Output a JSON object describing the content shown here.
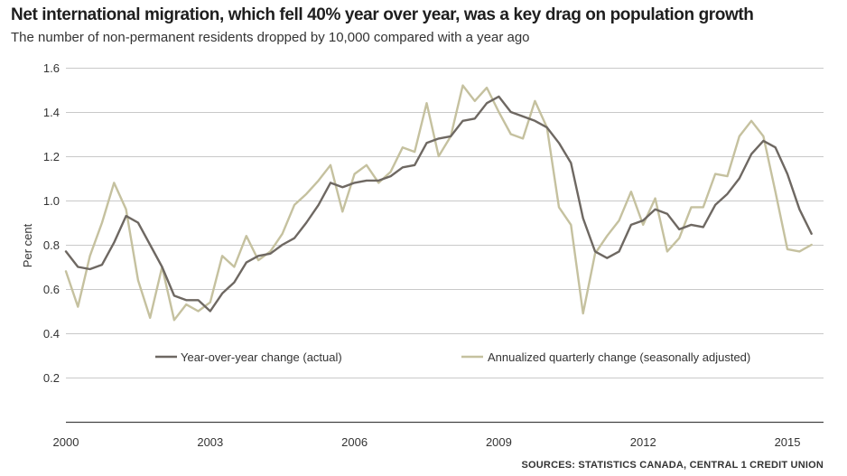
{
  "chart_data": {
    "type": "line",
    "title": "Net international migration, which fell 40% year over year, was a key drag on population growth",
    "subtitle": "The number of non-permanent residents dropped by 10,000 compared with a year ago",
    "ylabel": "Per cent",
    "xlabel": "",
    "ylim": [
      0,
      1.6
    ],
    "xlim": [
      2000,
      2015.75
    ],
    "yticks": [
      0.2,
      0.4,
      0.6,
      0.8,
      1.0,
      1.2,
      1.4,
      1.6
    ],
    "ytick_labels": [
      "0.2",
      "0.4",
      "0.6",
      "0.8",
      "1.0",
      "1.2",
      "1.4",
      "1.6"
    ],
    "xticks": [
      2000,
      2003,
      2006,
      2009,
      2012,
      2015
    ],
    "xtick_labels": [
      "2000",
      "2003",
      "2006",
      "2009",
      "2012",
      "2015"
    ],
    "grid": true,
    "legend_position": "middle",
    "x": [
      2000.0,
      2000.25,
      2000.5,
      2000.75,
      2001.0,
      2001.25,
      2001.5,
      2001.75,
      2002.0,
      2002.25,
      2002.5,
      2002.75,
      2003.0,
      2003.25,
      2003.5,
      2003.75,
      2004.0,
      2004.25,
      2004.5,
      2004.75,
      2005.0,
      2005.25,
      2005.5,
      2005.75,
      2006.0,
      2006.25,
      2006.5,
      2006.75,
      2007.0,
      2007.25,
      2007.5,
      2007.75,
      2008.0,
      2008.25,
      2008.5,
      2008.75,
      2009.0,
      2009.25,
      2009.5,
      2009.75,
      2010.0,
      2010.25,
      2010.5,
      2010.75,
      2011.0,
      2011.25,
      2011.5,
      2011.75,
      2012.0,
      2012.25,
      2012.5,
      2012.75,
      2013.0,
      2013.25,
      2013.5,
      2013.75,
      2014.0,
      2014.25,
      2014.5,
      2014.75,
      2015.0,
      2015.25,
      2015.5
    ],
    "series": [
      {
        "name": "Year-over-year change (actual)",
        "color": "#6e6862",
        "values": [
          0.77,
          0.7,
          0.69,
          0.71,
          0.81,
          0.93,
          0.9,
          0.8,
          0.7,
          0.57,
          0.55,
          0.55,
          0.5,
          0.58,
          0.63,
          0.72,
          0.75,
          0.76,
          0.8,
          0.83,
          0.9,
          0.98,
          1.08,
          1.06,
          1.08,
          1.09,
          1.09,
          1.11,
          1.15,
          1.16,
          1.26,
          1.28,
          1.29,
          1.36,
          1.37,
          1.44,
          1.47,
          1.4,
          1.38,
          1.36,
          1.33,
          1.26,
          1.17,
          0.92,
          0.77,
          0.74,
          0.77,
          0.89,
          0.91,
          0.96,
          0.94,
          0.87,
          0.89,
          0.88,
          0.98,
          1.03,
          1.1,
          1.21,
          1.27,
          1.24,
          1.12,
          0.96,
          0.85
        ]
      },
      {
        "name": "Annualized quarterly change (seasonally adjusted)",
        "color": "#c5c19f",
        "values": [
          0.68,
          0.52,
          0.75,
          0.9,
          1.08,
          0.96,
          0.64,
          0.47,
          0.7,
          0.46,
          0.53,
          0.5,
          0.54,
          0.75,
          0.7,
          0.84,
          0.73,
          0.77,
          0.85,
          0.98,
          1.03,
          1.09,
          1.16,
          0.95,
          1.12,
          1.16,
          1.08,
          1.13,
          1.24,
          1.22,
          1.44,
          1.2,
          1.29,
          1.52,
          1.45,
          1.51,
          1.4,
          1.3,
          1.28,
          1.45,
          1.33,
          0.97,
          0.89,
          0.49,
          0.76,
          0.84,
          0.91,
          1.04,
          0.89,
          1.01,
          0.77,
          0.83,
          0.97,
          0.97,
          1.12,
          1.11,
          1.29,
          1.36,
          1.29,
          1.04,
          0.78,
          0.77,
          0.8
        ]
      }
    ],
    "source": "SOURCES: STATISTICS CANADA, CENTRAL 1 CREDIT UNION"
  }
}
